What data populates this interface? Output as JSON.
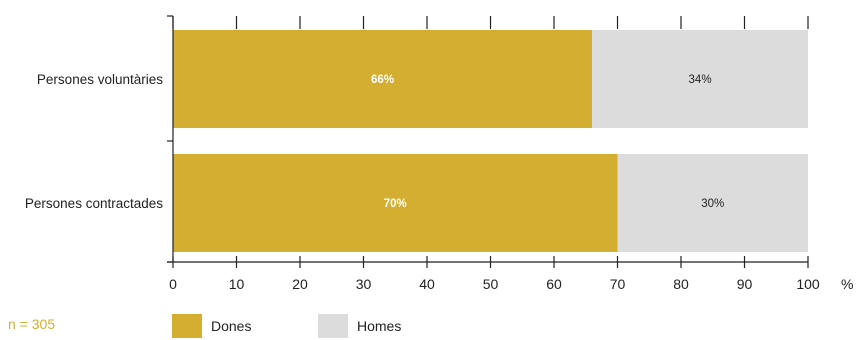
{
  "chart_data": {
    "type": "bar",
    "orientation": "horizontal",
    "stacked": true,
    "categories": [
      "Persones voluntàries",
      "Persones contractades"
    ],
    "series": [
      {
        "name": "Dones",
        "values": [
          66,
          70
        ],
        "labels": [
          "66%",
          "70%"
        ],
        "color": "#d4ae31",
        "label_color": "#ffffff"
      },
      {
        "name": "Homes",
        "values": [
          34,
          30
        ],
        "labels": [
          "34%",
          "30%"
        ],
        "color": "#dcdcdc",
        "label_color": "#222222"
      }
    ],
    "xlim": [
      0,
      100
    ],
    "xticks": [
      "0",
      "10",
      "20",
      "30",
      "40",
      "50",
      "60",
      "70",
      "80",
      "90",
      "100"
    ],
    "xunit": "%",
    "note": "n = 305",
    "legend_position": "bottom",
    "grid": false
  }
}
